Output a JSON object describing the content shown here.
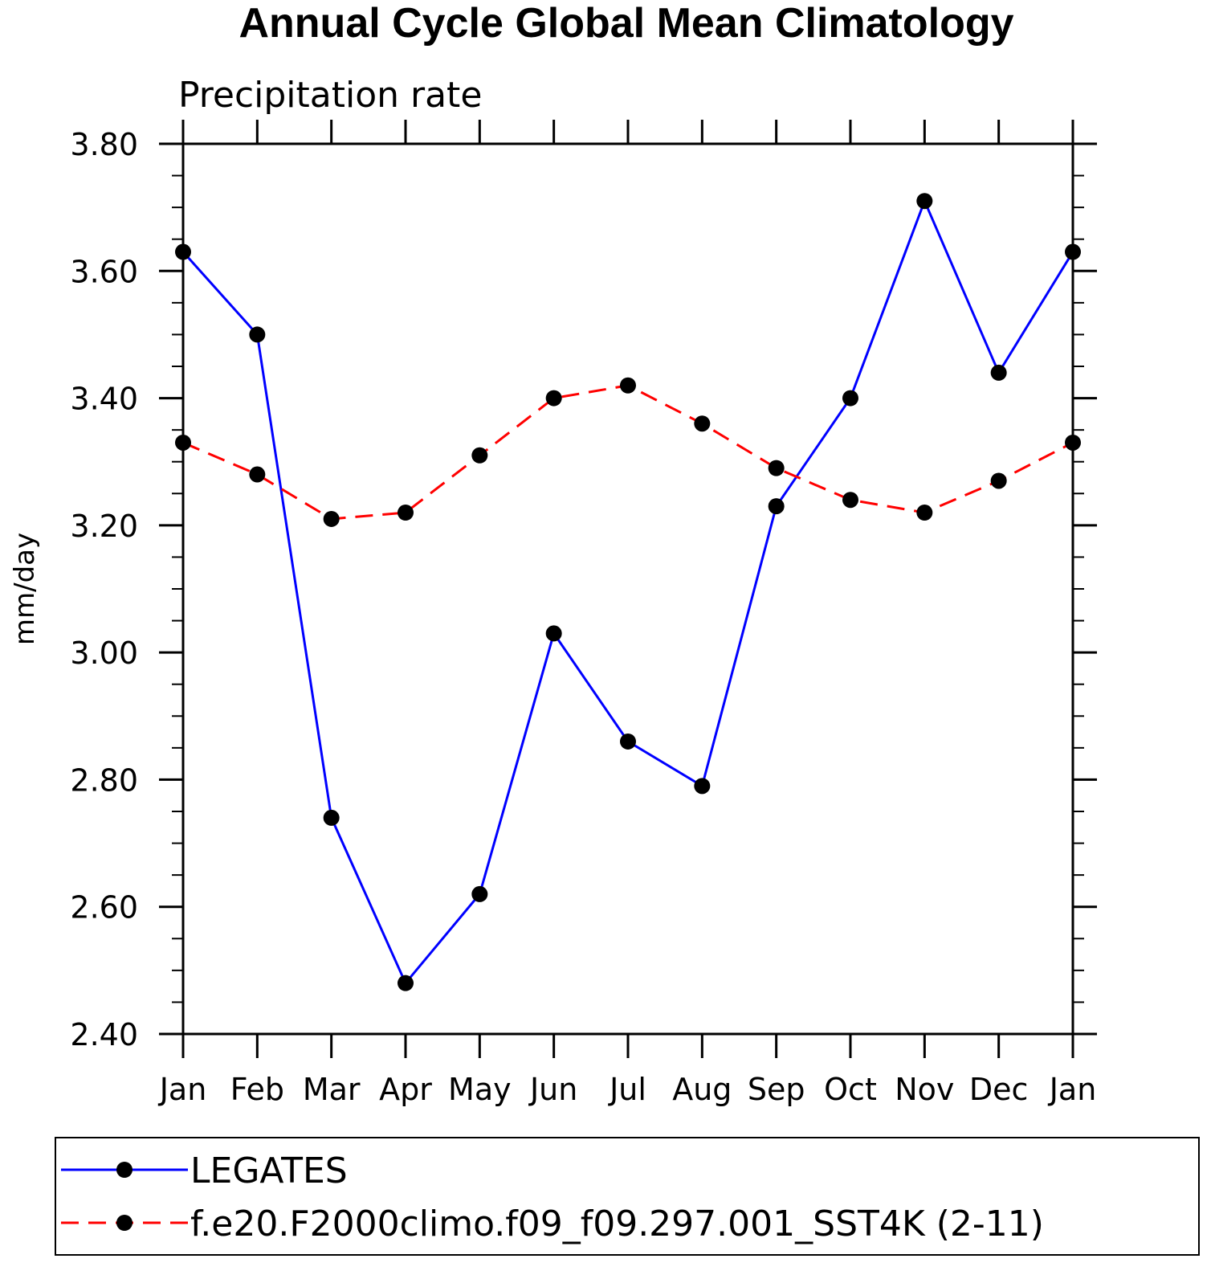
{
  "chart_data": {
    "type": "line",
    "title": "Annual Cycle Global Mean Climatology",
    "subtitle": "Precipitation rate",
    "xlabel": "",
    "ylabel": "mm/day",
    "categories": [
      "Jan",
      "Feb",
      "Mar",
      "Apr",
      "May",
      "Jun",
      "Jul",
      "Aug",
      "Sep",
      "Oct",
      "Nov",
      "Dec",
      "Jan"
    ],
    "ylim": [
      2.4,
      3.8
    ],
    "yticks": [
      "2.40",
      "2.60",
      "2.80",
      "3.00",
      "3.20",
      "3.40",
      "3.60",
      "3.80"
    ],
    "grid": false,
    "legend_position": "bottom",
    "series": [
      {
        "name": "LEGATES",
        "color": "#0000ff",
        "line_style": "solid",
        "marker": "filled-circle",
        "values": [
          3.63,
          3.5,
          2.74,
          2.48,
          2.62,
          3.03,
          2.86,
          2.79,
          3.23,
          3.4,
          3.71,
          3.44,
          3.63
        ]
      },
      {
        "name": "f.e20.F2000climo.f09_f09.297.001_SST4K (2-11)",
        "color": "#ff0000",
        "line_style": "dashed",
        "marker": "filled-circle",
        "values": [
          3.33,
          3.28,
          3.21,
          3.22,
          3.31,
          3.4,
          3.42,
          3.36,
          3.29,
          3.24,
          3.22,
          3.27,
          3.33
        ]
      }
    ]
  }
}
